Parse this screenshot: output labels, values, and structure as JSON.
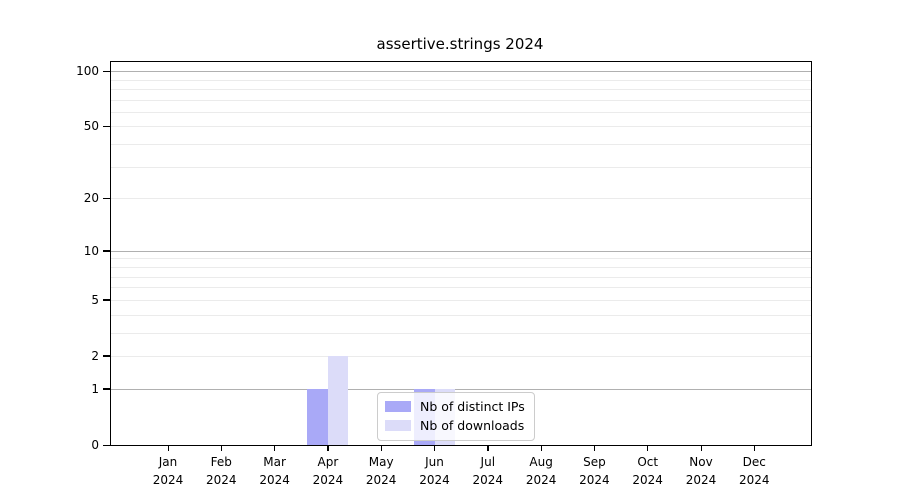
{
  "title": "assertive.strings 2024",
  "colors": {
    "distinct_ips": "#a9a9f7",
    "downloads": "#dcdcf9",
    "grid_major": "#b0b0b0",
    "grid_minor": "#ebebeb",
    "axis": "#000000",
    "legend_border": "#cccccc"
  },
  "legend": {
    "items": [
      {
        "label": "Nb of distinct IPs",
        "color_key": "distinct_ips"
      },
      {
        "label": "Nb of downloads",
        "color_key": "downloads"
      }
    ]
  },
  "chart_data": {
    "type": "bar",
    "title": "assertive.strings 2024",
    "xlabel": "",
    "ylabel": "",
    "yscale": "log10(1+x)",
    "ylim": [
      0,
      112
    ],
    "grid": "horizontal, minor log decades",
    "legend_position": "lower center inside plot",
    "year_label": "2024",
    "categories": [
      "Jan",
      "Feb",
      "Mar",
      "Apr",
      "May",
      "Jun",
      "Jul",
      "Aug",
      "Sep",
      "Oct",
      "Nov",
      "Dec"
    ],
    "yticks": [
      0,
      1,
      2,
      5,
      10,
      20,
      50,
      100
    ],
    "minor_grid_values": [
      2,
      3,
      4,
      5,
      6,
      7,
      8,
      9,
      20,
      30,
      40,
      50,
      60,
      70,
      80,
      90
    ],
    "major_grid_values": [
      1,
      10,
      100
    ],
    "series": [
      {
        "name": "Nb of distinct IPs",
        "values": [
          0,
          0,
          0,
          1,
          0,
          1,
          0,
          0,
          0,
          0,
          0,
          0
        ]
      },
      {
        "name": "Nb of downloads",
        "values": [
          0,
          0,
          0,
          2,
          0,
          1,
          0,
          0,
          0,
          0,
          0,
          0
        ]
      }
    ]
  }
}
